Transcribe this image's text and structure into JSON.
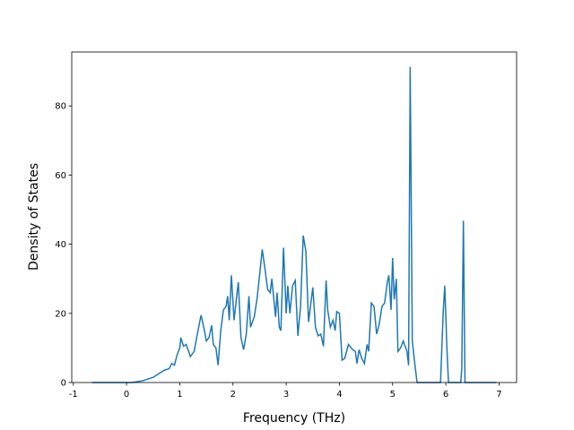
{
  "chart_data": {
    "type": "line",
    "xlabel": "Frequency (THz)",
    "ylabel": "Density of States",
    "xlim": [
      -1.03,
      7.33
    ],
    "ylim": [
      0,
      95.6
    ],
    "xticks": [
      -1,
      0,
      1,
      2,
      3,
      4,
      5,
      6,
      7
    ],
    "yticks": [
      0,
      20,
      40,
      60,
      80
    ],
    "series": [
      {
        "color": "#1f77b4",
        "x": [
          -0.65,
          0.1,
          0.3,
          0.5,
          0.6,
          0.7,
          0.8,
          0.85,
          0.9,
          0.95,
          1.0,
          1.02,
          1.07,
          1.12,
          1.2,
          1.27,
          1.33,
          1.4,
          1.45,
          1.5,
          1.55,
          1.6,
          1.63,
          1.68,
          1.72,
          1.77,
          1.82,
          1.87,
          1.9,
          1.93,
          1.97,
          2.02,
          2.07,
          2.1,
          2.15,
          2.2,
          2.25,
          2.3,
          2.33,
          2.4,
          2.45,
          2.5,
          2.55,
          2.6,
          2.65,
          2.7,
          2.73,
          2.8,
          2.83,
          2.87,
          2.9,
          2.95,
          3.0,
          3.03,
          3.07,
          3.12,
          3.17,
          3.22,
          3.27,
          3.32,
          3.37,
          3.42,
          3.5,
          3.55,
          3.6,
          3.65,
          3.7,
          3.75,
          3.78,
          3.83,
          3.88,
          3.92,
          3.95,
          4.0,
          4.05,
          4.1,
          4.17,
          4.25,
          4.3,
          4.33,
          4.37,
          4.42,
          4.47,
          4.52,
          4.55,
          4.6,
          4.65,
          4.7,
          4.75,
          4.8,
          4.85,
          4.9,
          4.93,
          4.97,
          5.0,
          5.03,
          5.07,
          5.1,
          5.15,
          5.2,
          5.27,
          5.3,
          5.33,
          5.37,
          5.42,
          5.46,
          5.5,
          5.9,
          5.95,
          5.98,
          6.02,
          6.05,
          6.28,
          6.3,
          6.33,
          6.36,
          6.95
        ],
        "values": [
          0,
          0,
          0.5,
          1.5,
          2.5,
          3.5,
          4,
          5.5,
          5,
          8,
          10,
          13,
          10.5,
          11,
          7.5,
          9,
          14,
          19.5,
          16,
          12,
          13,
          16.5,
          11,
          10,
          5,
          15,
          21,
          22,
          25,
          18,
          31,
          18,
          25,
          29,
          13,
          9.5,
          14,
          25,
          16,
          19,
          24,
          31,
          38.5,
          33,
          27,
          26,
          30,
          19,
          26,
          16,
          15,
          39,
          20,
          28,
          20,
          28,
          29.5,
          13.5,
          22,
          42.5,
          38,
          17.5,
          27.5,
          16,
          13.5,
          14,
          10.5,
          29.5,
          21,
          16,
          18,
          15,
          20.5,
          20,
          6.5,
          7,
          11,
          9.5,
          9,
          5.5,
          9.5,
          7,
          5.5,
          11,
          9,
          23,
          22,
          14,
          17,
          22,
          23,
          29,
          31,
          21,
          36,
          24,
          30,
          9,
          10,
          12,
          9,
          5,
          91.3,
          12,
          5,
          0,
          0,
          0,
          20,
          28,
          10,
          0,
          0,
          4,
          46.8,
          0,
          0
        ]
      }
    ]
  }
}
